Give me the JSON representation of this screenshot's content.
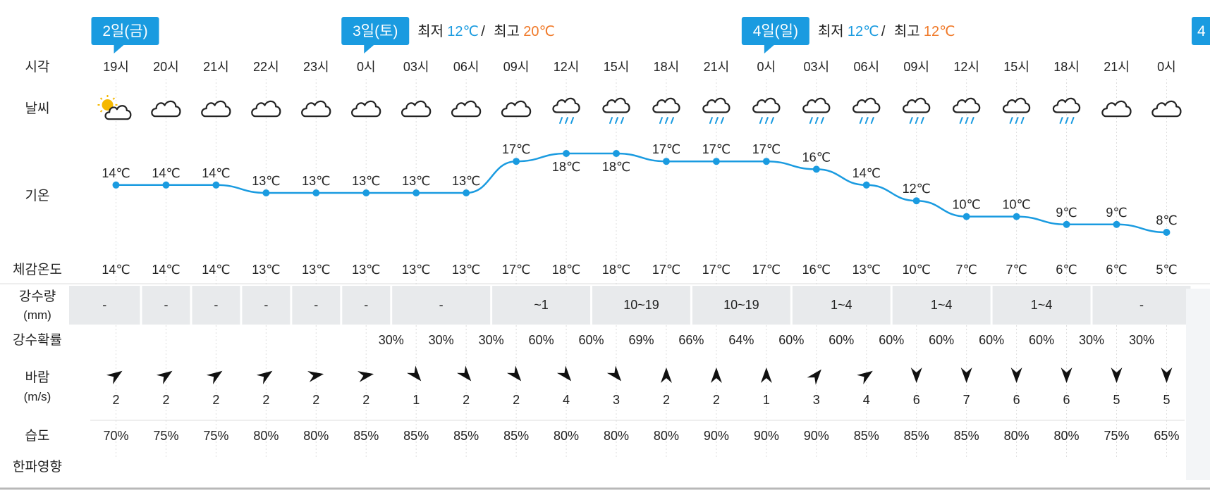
{
  "colors": {
    "line": "#1a9be0",
    "badge": "#1a9be0",
    "min": "#1a9be0",
    "max": "#f07a2a",
    "precip_bg": "#e8eaec",
    "text": "#222222",
    "sun": "#f5b800",
    "rain": "#1a9be0"
  },
  "days": [
    {
      "badge": "2일(금)",
      "slot": 0
    },
    {
      "badge": "3일(토)",
      "slot": 5,
      "min_label": "최저",
      "min": "12℃",
      "sep": "/",
      "max_label": "최고",
      "max": "20℃"
    },
    {
      "badge": "4일(일)",
      "slot": 13,
      "min_label": "최저",
      "min": "12℃",
      "sep": "/",
      "max_label": "최고",
      "max": "12℃"
    }
  ],
  "edge_badge": "4",
  "row_labels": {
    "time": "시각",
    "weather": "날씨",
    "temp": "기온",
    "feels": "체감온도",
    "precip": "강수량",
    "precip_unit": "(mm)",
    "prob": "강수확률",
    "wind": "바람",
    "wind_unit": "(m/s)",
    "humidity": "습도",
    "cold": "한파영향"
  },
  "chart_data": {
    "type": "line",
    "title": "",
    "x": [
      "19시",
      "20시",
      "21시",
      "22시",
      "23시",
      "0시",
      "03시",
      "06시",
      "09시",
      "12시",
      "15시",
      "18시",
      "21시",
      "0시",
      "03시",
      "06시",
      "09시",
      "12시",
      "15시",
      "18시",
      "21시",
      "0시"
    ],
    "series": [
      {
        "name": "기온",
        "values": [
          14,
          14,
          14,
          13,
          13,
          13,
          13,
          13,
          17,
          18,
          18,
          17,
          17,
          17,
          16,
          14,
          12,
          10,
          10,
          9,
          9,
          8
        ]
      }
    ],
    "point_labels": [
      "14℃",
      "14℃",
      "14℃",
      "13℃",
      "13℃",
      "13℃",
      "13℃",
      "13℃",
      "17℃",
      "18℃",
      "18℃",
      "17℃",
      "17℃",
      "17℃",
      "16℃",
      "14℃",
      "12℃",
      "10℃",
      "10℃",
      "9℃",
      "9℃",
      "8℃"
    ],
    "ylim": [
      8,
      18
    ],
    "weather_icons": [
      "partly-cloudy-icon",
      "cloud-icon",
      "cloud-icon",
      "cloud-icon",
      "cloud-icon",
      "cloud-icon",
      "cloud-icon",
      "cloud-icon",
      "cloud-icon",
      "rain-cloud-icon",
      "rain-cloud-icon",
      "rain-cloud-icon",
      "rain-cloud-icon",
      "rain-cloud-icon",
      "rain-cloud-icon",
      "rain-cloud-icon",
      "rain-cloud-icon",
      "rain-cloud-icon",
      "rain-cloud-icon",
      "rain-cloud-icon",
      "cloud-icon",
      "cloud-icon"
    ],
    "feels_like": [
      "14℃",
      "14℃",
      "14℃",
      "13℃",
      "13℃",
      "13℃",
      "13℃",
      "13℃",
      "17℃",
      "18℃",
      "18℃",
      "17℃",
      "17℃",
      "17℃",
      "16℃",
      "13℃",
      "10℃",
      "7℃",
      "7℃",
      "6℃",
      "6℃",
      "5℃"
    ],
    "precipitation": [
      {
        "start": 0,
        "end": 0,
        "label": "-"
      },
      {
        "start": 1,
        "end": 1,
        "label": "-"
      },
      {
        "start": 2,
        "end": 2,
        "label": "-"
      },
      {
        "start": 3,
        "end": 3,
        "label": "-"
      },
      {
        "start": 4,
        "end": 4,
        "label": "-"
      },
      {
        "start": 5,
        "end": 5,
        "label": "-"
      },
      {
        "start": 6,
        "end": 7,
        "label": "-"
      },
      {
        "start": 8,
        "end": 9,
        "label": "~1"
      },
      {
        "start": 10,
        "end": 11,
        "label": "10~19"
      },
      {
        "start": 12,
        "end": 13,
        "label": "10~19"
      },
      {
        "start": 14,
        "end": 15,
        "label": "1~4"
      },
      {
        "start": 16,
        "end": 17,
        "label": "1~4"
      },
      {
        "start": 18,
        "end": 19,
        "label": "1~4"
      },
      {
        "start": 20,
        "end": 21,
        "label": "-"
      }
    ],
    "precip_probability": [
      "30%",
      "30%",
      "30%",
      "60%",
      "60%",
      "69%",
      "66%",
      "64%",
      "60%",
      "60%",
      "60%",
      "60%",
      "60%",
      "60%",
      "30%",
      "30%"
    ],
    "wind_direction_deg": [
      235,
      235,
      235,
      235,
      260,
      260,
      320,
      320,
      320,
      320,
      320,
      180,
      180,
      180,
      220,
      235,
      0,
      0,
      0,
      0,
      0,
      0
    ],
    "wind_speed": [
      "2",
      "2",
      "2",
      "2",
      "2",
      "2",
      "1",
      "2",
      "2",
      "4",
      "3",
      "2",
      "2",
      "1",
      "3",
      "4",
      "6",
      "7",
      "6",
      "6",
      "5",
      "5"
    ],
    "humidity": [
      "70%",
      "75%",
      "75%",
      "80%",
      "80%",
      "85%",
      "85%",
      "85%",
      "85%",
      "80%",
      "80%",
      "80%",
      "90%",
      "90%",
      "90%",
      "85%",
      "85%",
      "85%",
      "80%",
      "80%",
      "75%",
      "65%"
    ]
  }
}
